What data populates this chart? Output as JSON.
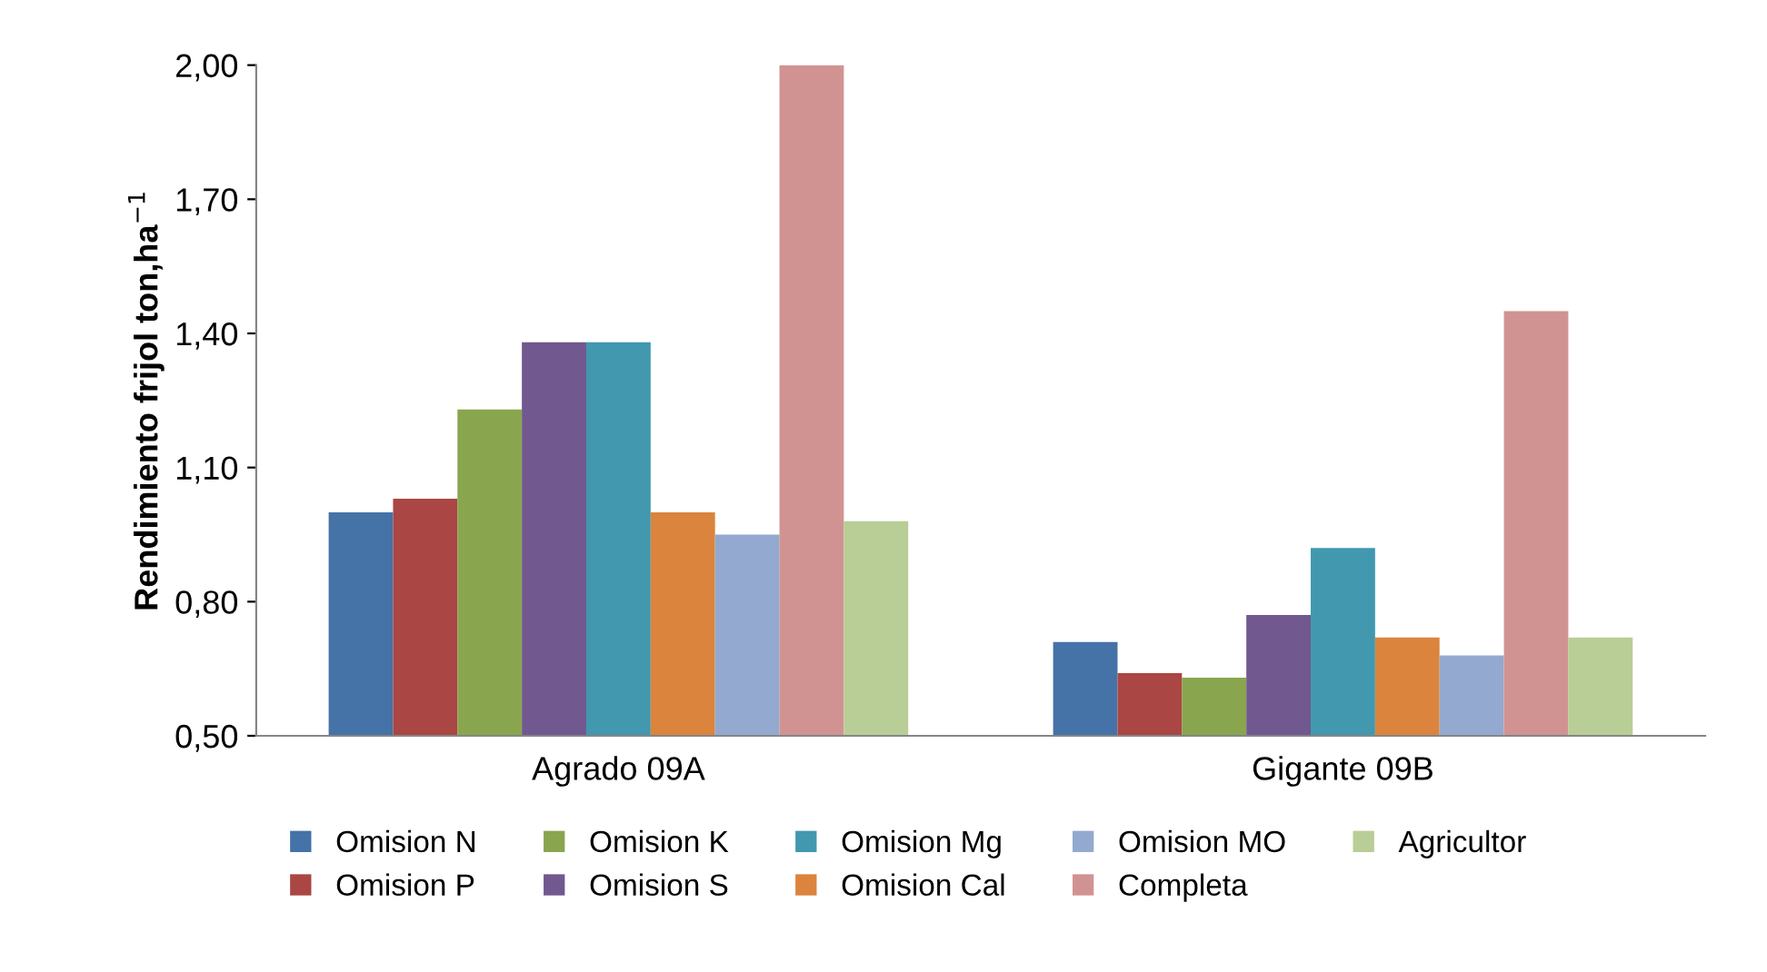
{
  "chart_data": {
    "type": "bar",
    "ylabel": "Rendimiento frijol ton,ha$^{−1}$",
    "categories": [
      "Agrado 09A",
      "Gigante 09B"
    ],
    "series": [
      {
        "name": "Omision N",
        "color": "#4572a7",
        "values": [
          1.0,
          0.71
        ]
      },
      {
        "name": "Omision P",
        "color": "#aa4643",
        "values": [
          1.03,
          0.64
        ]
      },
      {
        "name": "Omision K",
        "color": "#89a54e",
        "values": [
          1.23,
          0.63
        ]
      },
      {
        "name": "Omision S",
        "color": "#71588f",
        "values": [
          1.38,
          0.77
        ]
      },
      {
        "name": "Omision Mg",
        "color": "#4198af",
        "values": [
          1.38,
          0.92
        ]
      },
      {
        "name": "Omision Cal",
        "color": "#db843d",
        "values": [
          1.0,
          0.72
        ]
      },
      {
        "name": "Omision MO",
        "color": "#93a9cf",
        "values": [
          0.95,
          0.68
        ]
      },
      {
        "name": "Completa",
        "color": "#d19392",
        "values": [
          2.0,
          1.45
        ]
      },
      {
        "name": "Agricultor",
        "color": "#b9cd96",
        "values": [
          0.98,
          0.72
        ]
      }
    ],
    "ylim": [
      0.5,
      2.0
    ],
    "yticks": [
      {
        "value": 0.5,
        "label": "0,50"
      },
      {
        "value": 0.8,
        "label": "0,80"
      },
      {
        "value": 1.1,
        "label": "1,10"
      },
      {
        "value": 1.4,
        "label": "1,40"
      },
      {
        "value": 1.7,
        "label": "1,70"
      },
      {
        "value": 2.0,
        "label": "2,00"
      }
    ],
    "grid": false,
    "legend": "bottom"
  }
}
